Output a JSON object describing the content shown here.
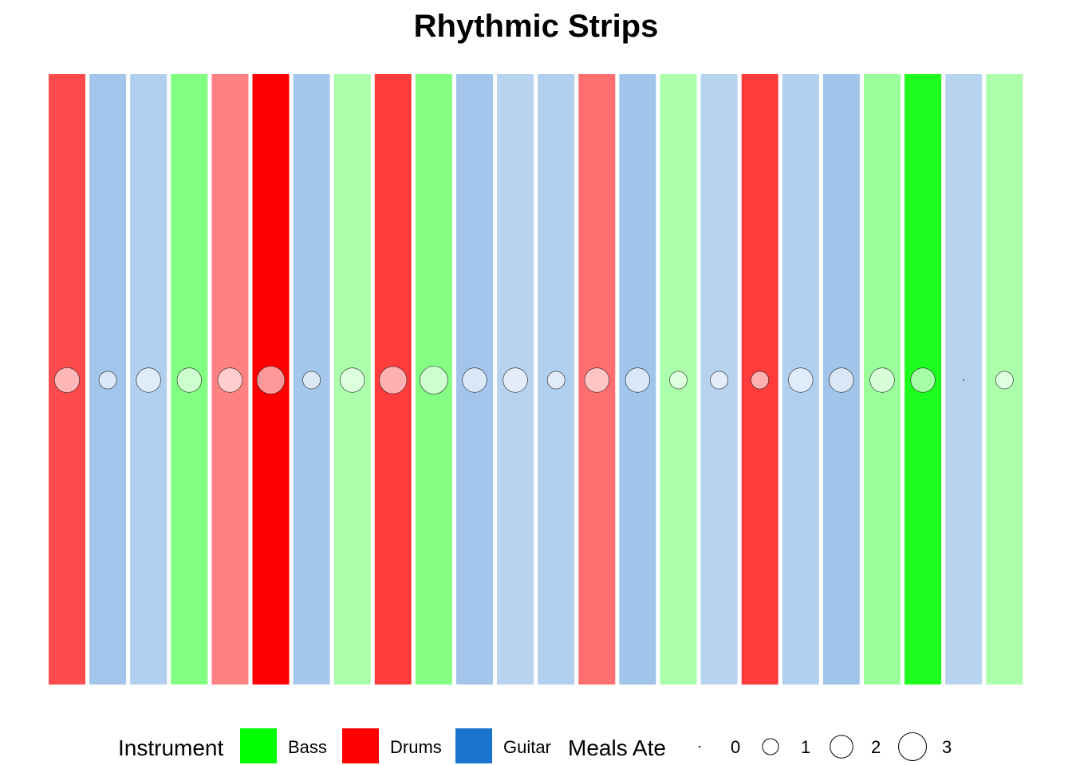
{
  "chart_data": {
    "type": "heatmap",
    "title": "Rhythmic Strips",
    "legend": {
      "fill_title": "Instrument",
      "fill_items": [
        {
          "label": "Bass",
          "color": "#00FF00"
        },
        {
          "label": "Drums",
          "color": "#FF0000"
        },
        {
          "label": "Guitar",
          "color": "#1874CD"
        }
      ],
      "size_title": "Meals Ate",
      "size_items": [
        {
          "label": "0",
          "value": 0
        },
        {
          "label": "1",
          "value": 1
        },
        {
          "label": "2",
          "value": 2
        },
        {
          "label": "3",
          "value": 3
        }
      ],
      "placement": "bottom"
    },
    "strips": [
      {
        "instrument": "Drums",
        "fill": "#FF4B4B",
        "meals": 2.4
      },
      {
        "instrument": "Guitar",
        "fill": "#A3C5EB",
        "meals": 1.2
      },
      {
        "instrument": "Guitar",
        "fill": "#B1CFEF",
        "meals": 2.3
      },
      {
        "instrument": "Bass",
        "fill": "#80FF80",
        "meals": 2.3
      },
      {
        "instrument": "Drums",
        "fill": "#FF8282",
        "meals": 2.3
      },
      {
        "instrument": "Drums",
        "fill": "#FF0000",
        "meals": 3.0
      },
      {
        "instrument": "Guitar",
        "fill": "#A6C7EC",
        "meals": 1.2
      },
      {
        "instrument": "Bass",
        "fill": "#ABFFAB",
        "meals": 2.3
      },
      {
        "instrument": "Drums",
        "fill": "#FF3B3B",
        "meals": 2.9
      },
      {
        "instrument": "Bass",
        "fill": "#84FF84",
        "meals": 3.0
      },
      {
        "instrument": "Guitar",
        "fill": "#A3C5EB",
        "meals": 2.3
      },
      {
        "instrument": "Guitar",
        "fill": "#B7D3F0",
        "meals": 2.3
      },
      {
        "instrument": "Guitar",
        "fill": "#B1CFEF",
        "meals": 1.2
      },
      {
        "instrument": "Drums",
        "fill": "#FF6F6F",
        "meals": 2.3
      },
      {
        "instrument": "Guitar",
        "fill": "#A1C4EA",
        "meals": 2.3
      },
      {
        "instrument": "Bass",
        "fill": "#ABFFAB",
        "meals": 1.2
      },
      {
        "instrument": "Guitar",
        "fill": "#B7D3F0",
        "meals": 1.2
      },
      {
        "instrument": "Drums",
        "fill": "#FF3B3B",
        "meals": 1.2
      },
      {
        "instrument": "Guitar",
        "fill": "#B1CFEF",
        "meals": 2.3
      },
      {
        "instrument": "Guitar",
        "fill": "#A1C4EA",
        "meals": 2.3
      },
      {
        "instrument": "Bass",
        "fill": "#9AFF9A",
        "meals": 2.3
      },
      {
        "instrument": "Bass",
        "fill": "#1FFF1F",
        "meals": 2.3
      },
      {
        "instrument": "Guitar",
        "fill": "#B7D3F0",
        "meals": 0.0
      },
      {
        "instrument": "Bass",
        "fill": "#ABFFAB",
        "meals": 1.2
      }
    ]
  }
}
